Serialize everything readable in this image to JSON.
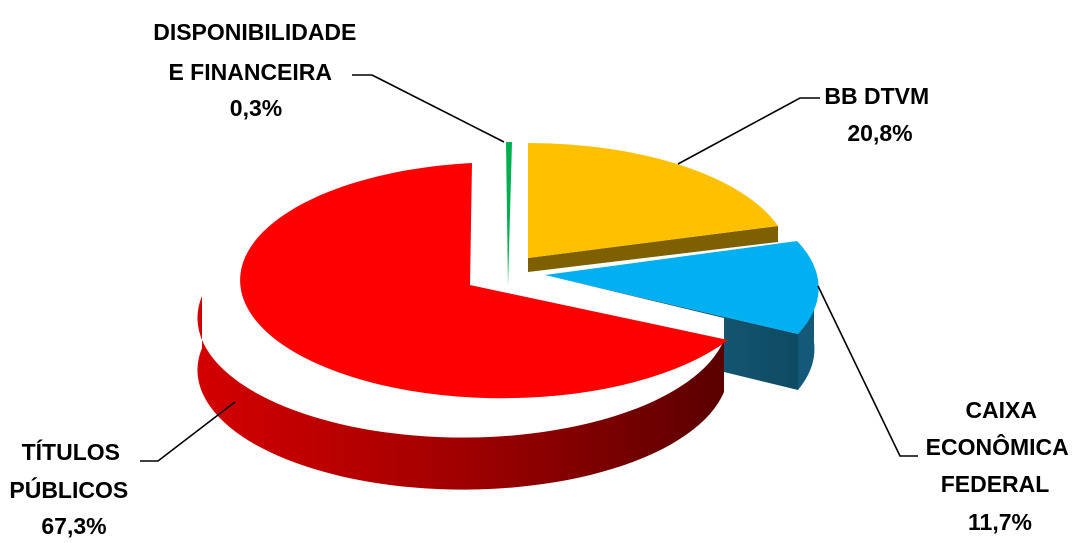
{
  "chart_data": {
    "type": "pie",
    "style": "3d-exploded",
    "title": "",
    "slices": [
      {
        "label_lines": [
          "DISPONIBILIDADE",
          "E FINANCEIRA"
        ],
        "value_label": "0,3%",
        "value": 0.3,
        "color": "#00b050"
      },
      {
        "label_lines": [
          "BB DTVM"
        ],
        "value_label": "20,8%",
        "value": 20.8,
        "color": "#ffc000"
      },
      {
        "label_lines": [
          "CAIXA",
          "ECONÔMICA",
          "FEDERAL"
        ],
        "value_label": "11,7%",
        "value": 11.7,
        "color": "#00b0f0"
      },
      {
        "label_lines": [
          "TÍTULOS",
          "PÚBLICOS"
        ],
        "value_label": "67,3%",
        "value": 67.3,
        "color": "#ff0000"
      }
    ]
  }
}
